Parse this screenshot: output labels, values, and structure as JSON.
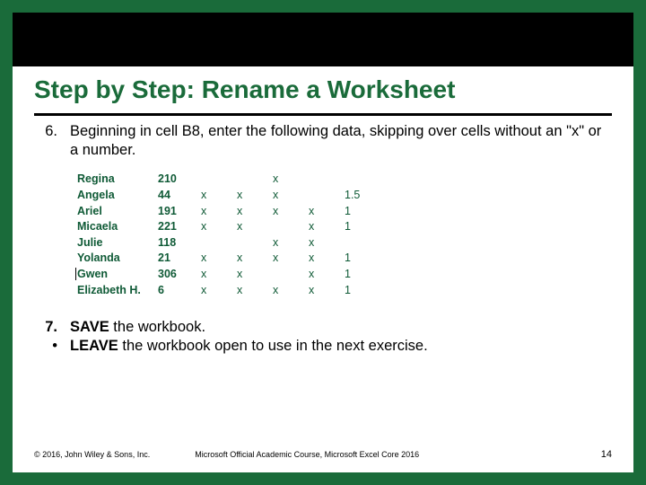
{
  "title": "Step by Step: Rename a Worksheet",
  "step6": {
    "num": "6.",
    "text": "Beginning in cell B8, enter the following data, skipping over cells without an \"x\" or a number."
  },
  "table": {
    "color": "#0f5a36",
    "rows": [
      {
        "name": "Regina",
        "num": "210",
        "c": [
          "",
          "",
          "x",
          "",
          "",
          ""
        ]
      },
      {
        "name": "Angela",
        "num": "44",
        "c": [
          "x",
          "x",
          "x",
          "",
          "1.5",
          ""
        ]
      },
      {
        "name": "Ariel",
        "num": "191",
        "c": [
          "x",
          "x",
          "x",
          "x",
          "1",
          ""
        ]
      },
      {
        "name": "Micaela",
        "num": "221",
        "c": [
          "x",
          "x",
          "",
          "x",
          "1",
          ""
        ]
      },
      {
        "name": "Julie",
        "num": "118",
        "c": [
          "",
          "",
          "x",
          "x",
          "",
          ""
        ]
      },
      {
        "name": "Yolanda",
        "num": "21",
        "c": [
          "x",
          "x",
          "x",
          "x",
          "1",
          ""
        ]
      },
      {
        "name": "Gwen",
        "num": "306",
        "c": [
          "x",
          "x",
          "",
          "x",
          "1",
          ""
        ]
      },
      {
        "name": "Elizabeth H.",
        "num": "6",
        "c": [
          "x",
          "x",
          "x",
          "x",
          "1",
          ""
        ]
      }
    ]
  },
  "step7": {
    "num": "7.",
    "bold": "SAVE",
    "rest": " the workbook."
  },
  "bullet": {
    "marker": "•",
    "bold": "LEAVE",
    "rest": " the workbook open to use in the next exercise."
  },
  "footer": {
    "copyright": "© 2016, John Wiley & Sons, Inc.",
    "course": "Microsoft Official Academic Course, Microsoft Excel Core 2016",
    "page": "14"
  }
}
